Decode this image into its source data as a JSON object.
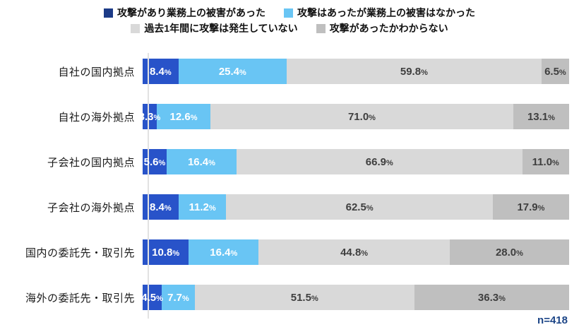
{
  "chart_data": {
    "type": "bar",
    "orientation": "horizontal-stacked",
    "unit": "%",
    "title": "",
    "xlabel": "",
    "ylabel": "",
    "xlim": [
      0,
      100
    ],
    "legend_position": "top",
    "grid": false,
    "categories": [
      "自社の国内拠点",
      "自社の海外拠点",
      "子会社の国内拠点",
      "子会社の海外拠点",
      "国内の委託先・取引先",
      "海外の委託先・取引先"
    ],
    "series": [
      {
        "name": "攻撃があり業務上の被害があった",
        "color": "#2853C9",
        "legend_color": "#1C3B87",
        "label_color": "#ffffff",
        "values": [
          8.4,
          3.3,
          5.6,
          8.4,
          10.8,
          4.5
        ]
      },
      {
        "name": "攻撃はあったが業務上の被害はなかった",
        "color": "#69C5F4",
        "legend_color": "#69C5F4",
        "label_color": "#ffffff",
        "values": [
          25.4,
          12.6,
          16.4,
          11.2,
          16.4,
          7.7
        ]
      },
      {
        "name": "過去1年間に攻撃は発生していない",
        "color": "#D9D9D9",
        "legend_color": "#D9D9D9",
        "label_color": "#3f3f3f",
        "values": [
          59.8,
          71.0,
          66.9,
          62.5,
          44.8,
          51.5
        ]
      },
      {
        "name": "攻撃があったかわからない",
        "color": "#BFBFBF",
        "legend_color": "#BFBFBF",
        "label_color": "#3f3f3f",
        "values": [
          6.5,
          13.1,
          11.0,
          17.9,
          28.0,
          36.3
        ]
      }
    ],
    "sample_size_label": "n=418",
    "sample_size_color": "#1C4587"
  }
}
